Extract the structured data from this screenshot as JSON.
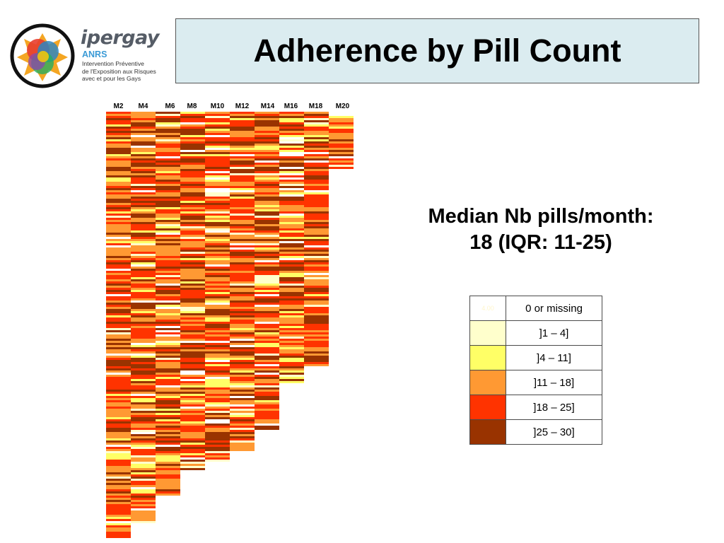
{
  "logo": {
    "name": "ipergay",
    "sub": "ANRS",
    "tagline": [
      "Intervention Préventive",
      "de l'Exposition aux Risques",
      "avec et pour les Gays"
    ]
  },
  "title": "Adherence by Pill Count",
  "summary": {
    "line1": "Median Nb pills/month:",
    "line2": "18 (IQR: 11-25)"
  },
  "legend": [
    {
      "label": "0 or missing",
      "color": "#ffffff",
      "swatch_text": "4.00",
      "swatch_text_color": "#fff6cc"
    },
    {
      "label": "]1 – 4]",
      "color": "#ffffcc",
      "swatch_text": "",
      "swatch_text_color": ""
    },
    {
      "label": "]4 – 11]",
      "color": "#ffff66",
      "swatch_text": "",
      "swatch_text_color": ""
    },
    {
      "label": "]11 – 18]",
      "color": "#ff9933",
      "swatch_text": "",
      "swatch_text_color": ""
    },
    {
      "label": "]18 – 25]",
      "color": "#ff3300",
      "swatch_text": "",
      "swatch_text_color": ""
    },
    {
      "label": "]25 – 30]",
      "color": "#993300",
      "swatch_text": "",
      "swatch_text_color": ""
    }
  ],
  "chart_data": {
    "type": "heatmap",
    "title": "Adherence by Pill Count",
    "x_categories": [
      "M2",
      "M4",
      "M6",
      "M8",
      "M10",
      "M12",
      "M14",
      "M16",
      "M18",
      "M20"
    ],
    "color_scale": [
      {
        "range": "0 or missing",
        "color": "#ffffff"
      },
      {
        "range": "]1 – 4]",
        "color": "#ffffcc"
      },
      {
        "range": "]4 – 11]",
        "color": "#ffff66"
      },
      {
        "range": "]11 – 18]",
        "color": "#ff9933"
      },
      {
        "range": "]18 – 25]",
        "color": "#ff3300"
      },
      {
        "range": "]25 – 30]",
        "color": "#993300"
      }
    ],
    "participants_per_month": [
      201,
      195,
      181,
      170,
      165,
      160,
      150,
      128,
      120,
      27
    ],
    "median_pills_per_month": 18,
    "iqr": [
      11,
      25
    ]
  }
}
